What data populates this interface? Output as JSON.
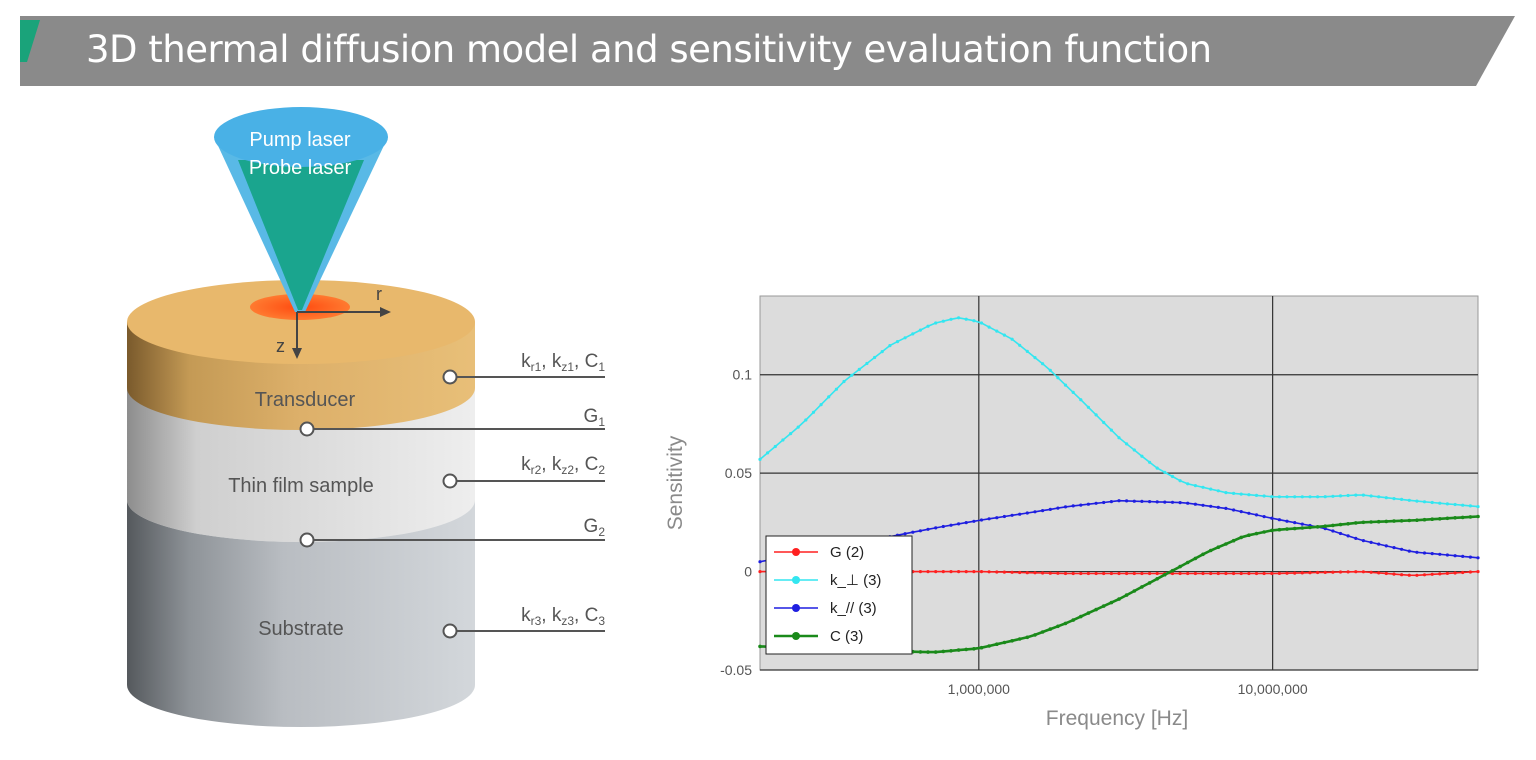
{
  "header": {
    "title": "3D thermal diffusion model and sensitivity evaluation function",
    "bar_color": "#8a8a8a",
    "accent_color": "#1aa37a"
  },
  "diagram": {
    "laser_label_1": "Pump laser",
    "laser_label_2": "Probe laser",
    "axis_r": "r",
    "axis_z": "z",
    "layers": [
      {
        "name": "Transducer",
        "param_k": "k",
        "sub_r": "r1",
        "sub_z": "z1",
        "sub_c": "1",
        "color": "#e0b36a"
      },
      {
        "name": "Thin film sample",
        "param_k": "k",
        "sub_r": "r2",
        "sub_z": "z2",
        "sub_c": "2",
        "color": "#e4e4e4"
      },
      {
        "name": "Substrate",
        "param_k": "k",
        "sub_r": "r3",
        "sub_z": "z3",
        "sub_c": "3",
        "color": "#c7cbd0"
      }
    ],
    "interfaces": [
      {
        "label": "G",
        "sub": "1"
      },
      {
        "label": "G",
        "sub": "2"
      }
    ],
    "c_letter": "C",
    "sep": ", "
  },
  "chart_data": {
    "type": "line",
    "title": "",
    "xlabel": "Frequency [Hz]",
    "ylabel": "Sensitivity",
    "x_scale": "log",
    "xlim": [
      180000,
      50000000
    ],
    "ylim": [
      -0.05,
      0.14
    ],
    "x_ticks": [
      {
        "value": 1000000,
        "label": "1,000,000"
      },
      {
        "value": 10000000,
        "label": "10,000,000"
      }
    ],
    "y_ticks": [
      {
        "value": -0.05,
        "label": "-0.05"
      },
      {
        "value": 0,
        "label": "0"
      },
      {
        "value": 0.05,
        "label": "0.05"
      },
      {
        "value": 0.1,
        "label": "0.1"
      }
    ],
    "grid": true,
    "legend_position": "bottom-left",
    "series": [
      {
        "name": "G (2)",
        "color": "#ff2020",
        "x": [
          180000,
          300000,
          500000,
          1000000,
          2000000,
          5000000,
          10000000,
          20000000,
          30000000,
          50000000
        ],
        "y": [
          0.0,
          0.0,
          0.0,
          0.0,
          -0.001,
          -0.001,
          -0.001,
          0.0,
          -0.002,
          0.0
        ]
      },
      {
        "name": "k_⊥ (3)",
        "color": "#33e6f0",
        "x": [
          180000,
          250000,
          350000,
          500000,
          700000,
          850000,
          1000000,
          1300000,
          1700000,
          2200000,
          3000000,
          4000000,
          5000000,
          7000000,
          10000000,
          15000000,
          20000000,
          30000000,
          50000000
        ],
        "y": [
          0.057,
          0.075,
          0.097,
          0.115,
          0.126,
          0.129,
          0.127,
          0.118,
          0.104,
          0.088,
          0.068,
          0.053,
          0.045,
          0.04,
          0.038,
          0.038,
          0.039,
          0.036,
          0.033
        ]
      },
      {
        "name": "k_// (3)",
        "color": "#1f1fe0",
        "x": [
          180000,
          400000,
          700000,
          1000000,
          1500000,
          2000000,
          3000000,
          5000000,
          7000000,
          10000000,
          15000000,
          20000000,
          30000000,
          50000000
        ],
        "y": [
          0.005,
          0.015,
          0.022,
          0.026,
          0.03,
          0.033,
          0.036,
          0.035,
          0.032,
          0.027,
          0.022,
          0.016,
          0.01,
          0.007
        ]
      },
      {
        "name": "C (3)",
        "color": "#1a8a1a",
        "x": [
          180000,
          400000,
          700000,
          1000000,
          1500000,
          2000000,
          3000000,
          4500000,
          6000000,
          8000000,
          10000000,
          15000000,
          20000000,
          30000000,
          50000000
        ],
        "y": [
          -0.038,
          -0.04,
          -0.041,
          -0.039,
          -0.033,
          -0.026,
          -0.014,
          0.0,
          0.01,
          0.018,
          0.021,
          0.023,
          0.025,
          0.026,
          0.028
        ]
      }
    ]
  }
}
